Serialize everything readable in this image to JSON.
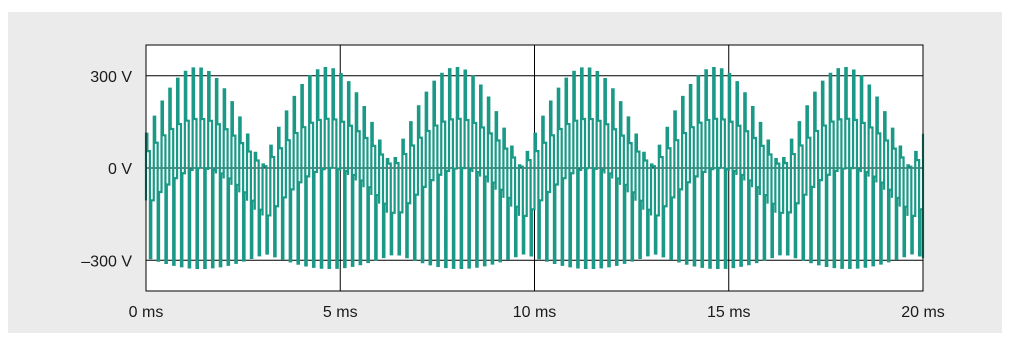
{
  "chart_data": {
    "type": "line",
    "title": "",
    "xlabel": "",
    "ylabel": "",
    "xlim": [
      0,
      20
    ],
    "ylim": [
      -400,
      400
    ],
    "x_ticks": [
      0,
      5,
      10,
      15,
      20
    ],
    "x_tick_labels": [
      "0 ms",
      "5 ms",
      "10 ms",
      "15 ms",
      "20 ms"
    ],
    "y_ticks": [
      300,
      0,
      -300
    ],
    "y_tick_labels": [
      "300 V",
      "0 V",
      "–300 V"
    ],
    "grid": true,
    "legend": "none",
    "series_color": "#1a9a86",
    "waveform": {
      "description_type": "pwm-three-level",
      "envelope_frequency_hz": 150,
      "envelope_min_v": -325,
      "envelope_max_v": 325,
      "pulse_period_ms": 0.2,
      "upper_trace_mean_range_v": [
        0,
        160
      ],
      "lower_trace_mean_range_v": [
        -160,
        0
      ]
    }
  }
}
